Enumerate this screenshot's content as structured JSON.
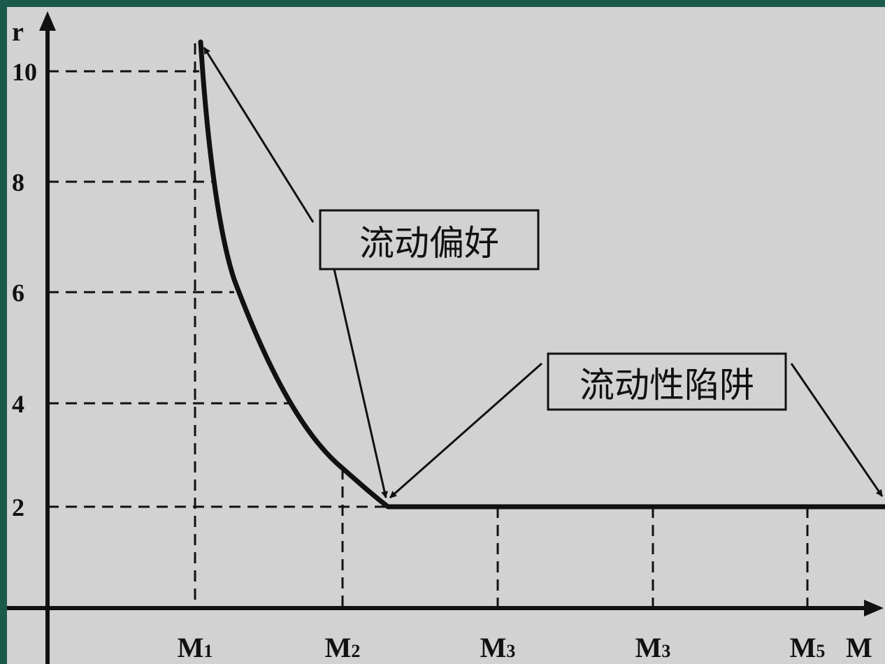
{
  "axes": {
    "y_label": "r",
    "x_label": "M",
    "y_ticks": [
      "10",
      "8",
      "6",
      "4",
      "2"
    ],
    "x_ticks": [
      {
        "base": "M",
        "sub": "1"
      },
      {
        "base": "M",
        "sub": "2"
      },
      {
        "base": "M",
        "sub": "3"
      },
      {
        "base": "M",
        "sub": "3"
      },
      {
        "base": "M",
        "sub": "5"
      }
    ]
  },
  "curve": {
    "segments": [
      "liquidity-preference",
      "liquidity-trap"
    ]
  },
  "callouts": {
    "preference": "流动偏好",
    "trap": "流动性陷阱"
  },
  "colors": {
    "outer": "#1b5a4a",
    "background": "#d2d2d2",
    "ink": "#111111"
  }
}
